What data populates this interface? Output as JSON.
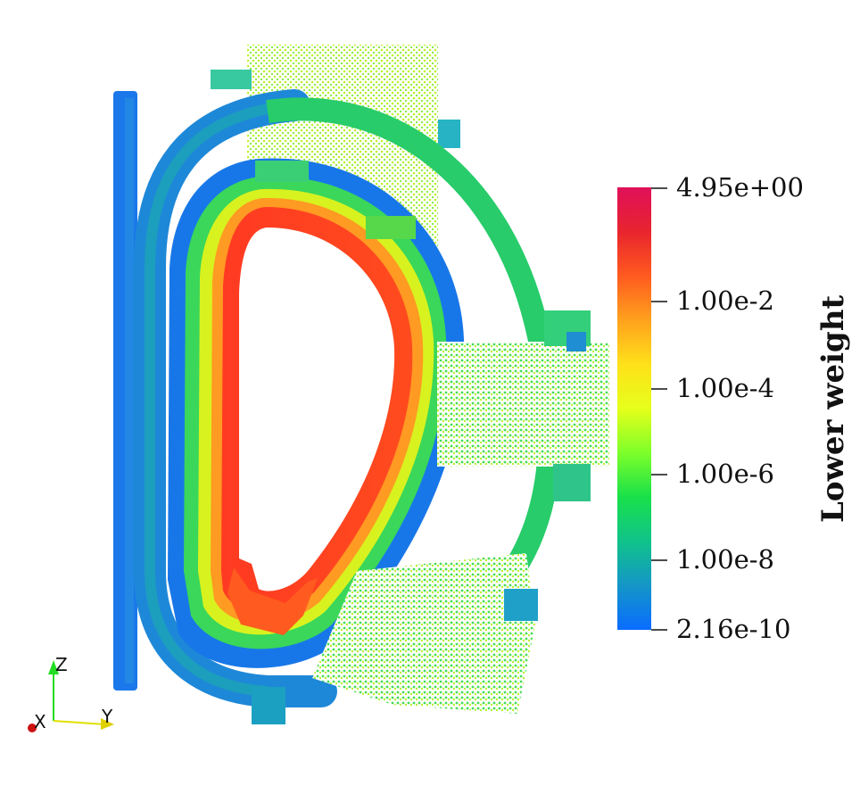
{
  "colorbar": {
    "title": "Lower weight",
    "ticks": [
      "4.95e+00",
      "1.00e-2",
      "1.00e-4",
      "1.00e-6",
      "1.00e-8",
      "2.16e-10"
    ],
    "gradient": [
      "#e0105a",
      "#e8242e",
      "#ff5a1f",
      "#ffa11d",
      "#ffe11a",
      "#e6ff1a",
      "#7dff2a",
      "#19e04a",
      "#10c38a",
      "#1496c8",
      "#0a6cff"
    ]
  },
  "axes_triad": {
    "x_label": "X",
    "y_label": "Y",
    "z_label": "Z"
  },
  "colors": {
    "inner": "#ff3a22",
    "outer_blue": "#1877e8",
    "mid_green": "#2ad46a",
    "yellow_green": "#c7f02a"
  }
}
